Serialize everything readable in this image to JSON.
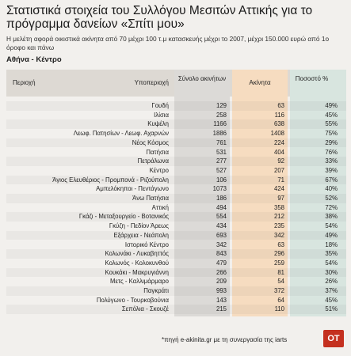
{
  "header": {
    "title": "Στατιστικά στοιχεία του Συλλόγου Μεσιτών Αττικής για το πρόγραμμα δανείων «Σπίτι μου»",
    "subtitle": "Η μελέτη αφορά οικιστικά ακίνητα από 70 μέχρι 100 τ.μ κατασκευής μέχρι το 2007, μέχρι 150.000 ευρώ από 1ο όροφο και πάνω",
    "section": "Αθήνα - Κέντρο"
  },
  "table": {
    "columns": [
      "Περιοχή",
      "Υποπεριοχή",
      "Σύνολο ακινήτων",
      "Ακίνητα",
      "Ποσοστό %"
    ],
    "rows": [
      [
        "Γουδή",
        129,
        63,
        "49%"
      ],
      [
        "Ιλίσια",
        258,
        116,
        "45%"
      ],
      [
        "Κυψέλη",
        1166,
        638,
        "55%"
      ],
      [
        "Λεωφ. Πατησίων - Λεωφ. Αχαρνών",
        1886,
        1408,
        "75%"
      ],
      [
        "Νέος Κόσμος",
        761,
        224,
        "29%"
      ],
      [
        "Πατήσια",
        531,
        404,
        "76%"
      ],
      [
        "Πετράλωνα",
        277,
        92,
        "33%"
      ],
      [
        "Κέντρο",
        527,
        207,
        "39%"
      ],
      [
        "Άγιος Ελευθέριος - Προμπονά - Ριζούπολη",
        106,
        71,
        "67%"
      ],
      [
        "Αμπελόκηποι - Πεντάγωνο",
        1073,
        424,
        "40%"
      ],
      [
        "Άνω Πατήσια",
        186,
        97,
        "52%"
      ],
      [
        "Αττική",
        494,
        358,
        "72%"
      ],
      [
        "Γκάζι - Μεταξουργείο - Βοτανικός",
        554,
        212,
        "38%"
      ],
      [
        "Γκύζη - Πεδίον Άρεως",
        434,
        235,
        "54%"
      ],
      [
        "Εξάρχεια - Νεάπολη",
        693,
        342,
        "49%"
      ],
      [
        "Ιστορικό Κέντρο",
        342,
        63,
        "18%"
      ],
      [
        "Κολωνάκι - Λυκαβηττός",
        843,
        296,
        "35%"
      ],
      [
        "Κολωνός - Κολοκυνθού",
        479,
        259,
        "54%"
      ],
      [
        "Κουκάκι - Μακρυγιάννη",
        266,
        81,
        "30%"
      ],
      [
        "Μετς - Καλλιμάρμαρο",
        209,
        54,
        "26%"
      ],
      [
        "Παγκράτι",
        993,
        372,
        "37%"
      ],
      [
        "Πολύγωνο - Τουρκοβούνια",
        143,
        64,
        "45%"
      ],
      [
        "Σεπόλια - Σκουζέ",
        215,
        110,
        "51%"
      ]
    ]
  },
  "footer": {
    "source": "*πηγή e-akinita.gr με τη συνεργασία της iarts",
    "logo": "OT"
  }
}
